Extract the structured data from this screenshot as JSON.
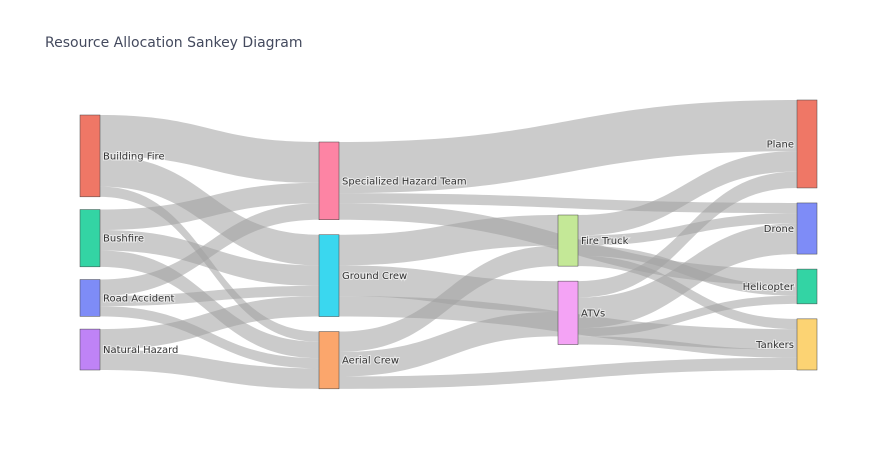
{
  "chart_data": {
    "type": "sankey",
    "title": "Resource Allocation Sankey Diagram",
    "nodes": [
      {
        "name": "Building Fire",
        "color": "#ef7766"
      },
      {
        "name": "Bushfire",
        "color": "#33d4a4"
      },
      {
        "name": "Road Accident",
        "color": "#7e8cf7"
      },
      {
        "name": "Natural Hazard",
        "color": "#bf83f6"
      },
      {
        "name": "Specialized Hazard Team",
        "color": "#fd84a4"
      },
      {
        "name": "Ground Crew",
        "color": "#3ad7ef"
      },
      {
        "name": "Aerial Crew",
        "color": "#fba66c"
      },
      {
        "name": "Fire Truck",
        "color": "#c4e897"
      },
      {
        "name": "ATVs",
        "color": "#f4a3f5"
      },
      {
        "name": "Plane",
        "color": "#ef7766"
      },
      {
        "name": "Drone",
        "color": "#7e8cf7"
      },
      {
        "name": "Helicopter",
        "color": "#33d4a4"
      },
      {
        "name": "Tankers",
        "color": "#fcd373"
      }
    ],
    "links": [
      {
        "source": "Building Fire",
        "target": "Specialized Hazard Team",
        "value": 20
      },
      {
        "source": "Building Fire",
        "target": "Ground Crew",
        "value": 15
      },
      {
        "source": "Building Fire",
        "target": "Aerial Crew",
        "value": 5
      },
      {
        "source": "Bushfire",
        "target": "Specialized Hazard Team",
        "value": 10
      },
      {
        "source": "Bushfire",
        "target": "Ground Crew",
        "value": 10
      },
      {
        "source": "Bushfire",
        "target": "Aerial Crew",
        "value": 8
      },
      {
        "source": "Road Accident",
        "target": "Specialized Hazard Team",
        "value": 8
      },
      {
        "source": "Road Accident",
        "target": "Ground Crew",
        "value": 5
      },
      {
        "source": "Road Accident",
        "target": "Aerial Crew",
        "value": 5
      },
      {
        "source": "Natural Hazard",
        "target": "Ground Crew",
        "value": 10
      },
      {
        "source": "Natural Hazard",
        "target": "Aerial Crew",
        "value": 10
      },
      {
        "source": "Specialized Hazard Team",
        "target": "Plane",
        "value": 25
      },
      {
        "source": "Specialized Hazard Team",
        "target": "Drone",
        "value": 5
      },
      {
        "source": "Specialized Hazard Team",
        "target": "Helicopter",
        "value": 8
      },
      {
        "source": "Ground Crew",
        "target": "Fire Truck",
        "value": 15
      },
      {
        "source": "Ground Crew",
        "target": "ATVs",
        "value": 15
      },
      {
        "source": "Ground Crew",
        "target": "Tankers",
        "value": 10
      },
      {
        "source": "Aerial Crew",
        "target": "Fire Truck",
        "value": 10
      },
      {
        "source": "Aerial Crew",
        "target": "ATVs",
        "value": 12
      },
      {
        "source": "Aerial Crew",
        "target": "Tankers",
        "value": 6
      },
      {
        "source": "Fire Truck",
        "target": "Plane",
        "value": 10
      },
      {
        "source": "Fire Truck",
        "target": "Drone",
        "value": 5
      },
      {
        "source": "Fire Truck",
        "target": "Helicopter",
        "value": 5
      },
      {
        "source": "Fire Truck",
        "target": "Tankers",
        "value": 5
      },
      {
        "source": "ATVs",
        "target": "Plane",
        "value": 8
      },
      {
        "source": "ATVs",
        "target": "Drone",
        "value": 15
      },
      {
        "source": "ATVs",
        "target": "Helicopter",
        "value": 4
      },
      {
        "source": "ATVs",
        "target": "Tankers",
        "value": 4
      }
    ],
    "link_color": "#a0a0a0"
  }
}
